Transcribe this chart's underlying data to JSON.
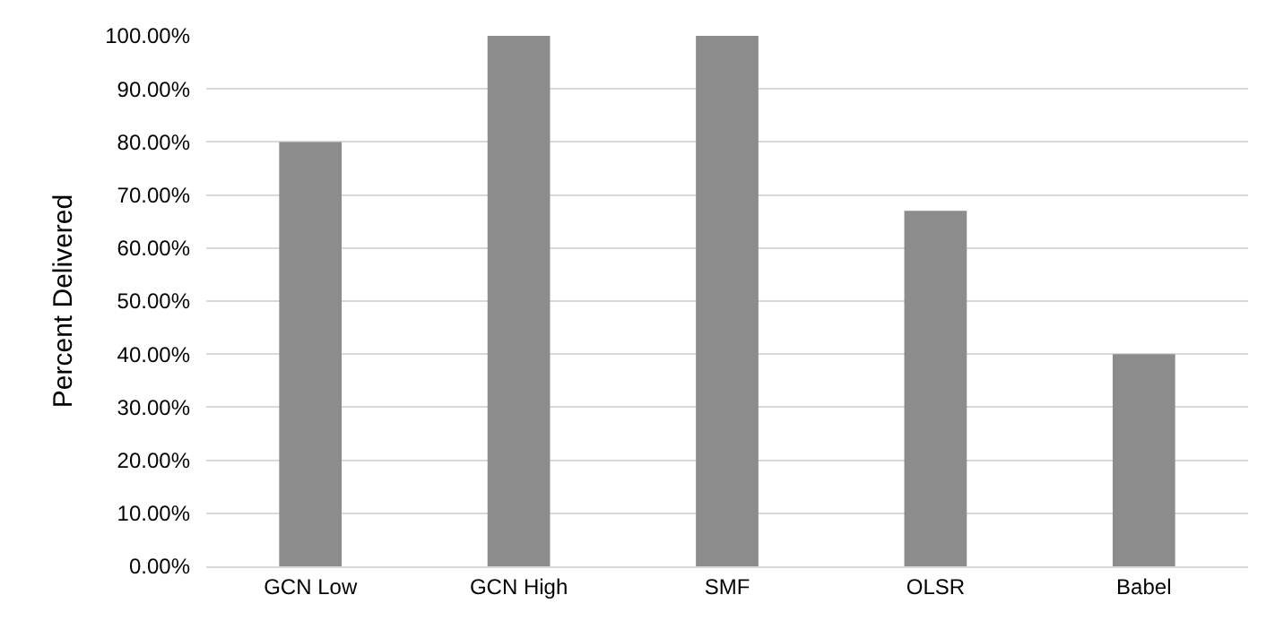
{
  "chart_data": {
    "type": "bar",
    "ylabel": "Percent Delivered",
    "categories": [
      "GCN Low",
      "GCN High",
      "SMF",
      "OLSR",
      "Babel"
    ],
    "values": [
      80,
      100,
      100,
      67,
      40
    ],
    "color": "#8c8c8c",
    "ylim": [
      0,
      100
    ],
    "yticks": [
      {
        "value": 0,
        "label": "0.00%"
      },
      {
        "value": 10,
        "label": "10.00%"
      },
      {
        "value": 20,
        "label": "20.00%"
      },
      {
        "value": 30,
        "label": "30.00%"
      },
      {
        "value": 40,
        "label": "40.00%"
      },
      {
        "value": 50,
        "label": "50.00%"
      },
      {
        "value": 60,
        "label": "60.00%"
      },
      {
        "value": 70,
        "label": "70.00%"
      },
      {
        "value": 80,
        "label": "80.00%"
      },
      {
        "value": 90,
        "label": "90.00%"
      },
      {
        "value": 100,
        "label": "100.00%"
      }
    ],
    "grid": "y"
  }
}
